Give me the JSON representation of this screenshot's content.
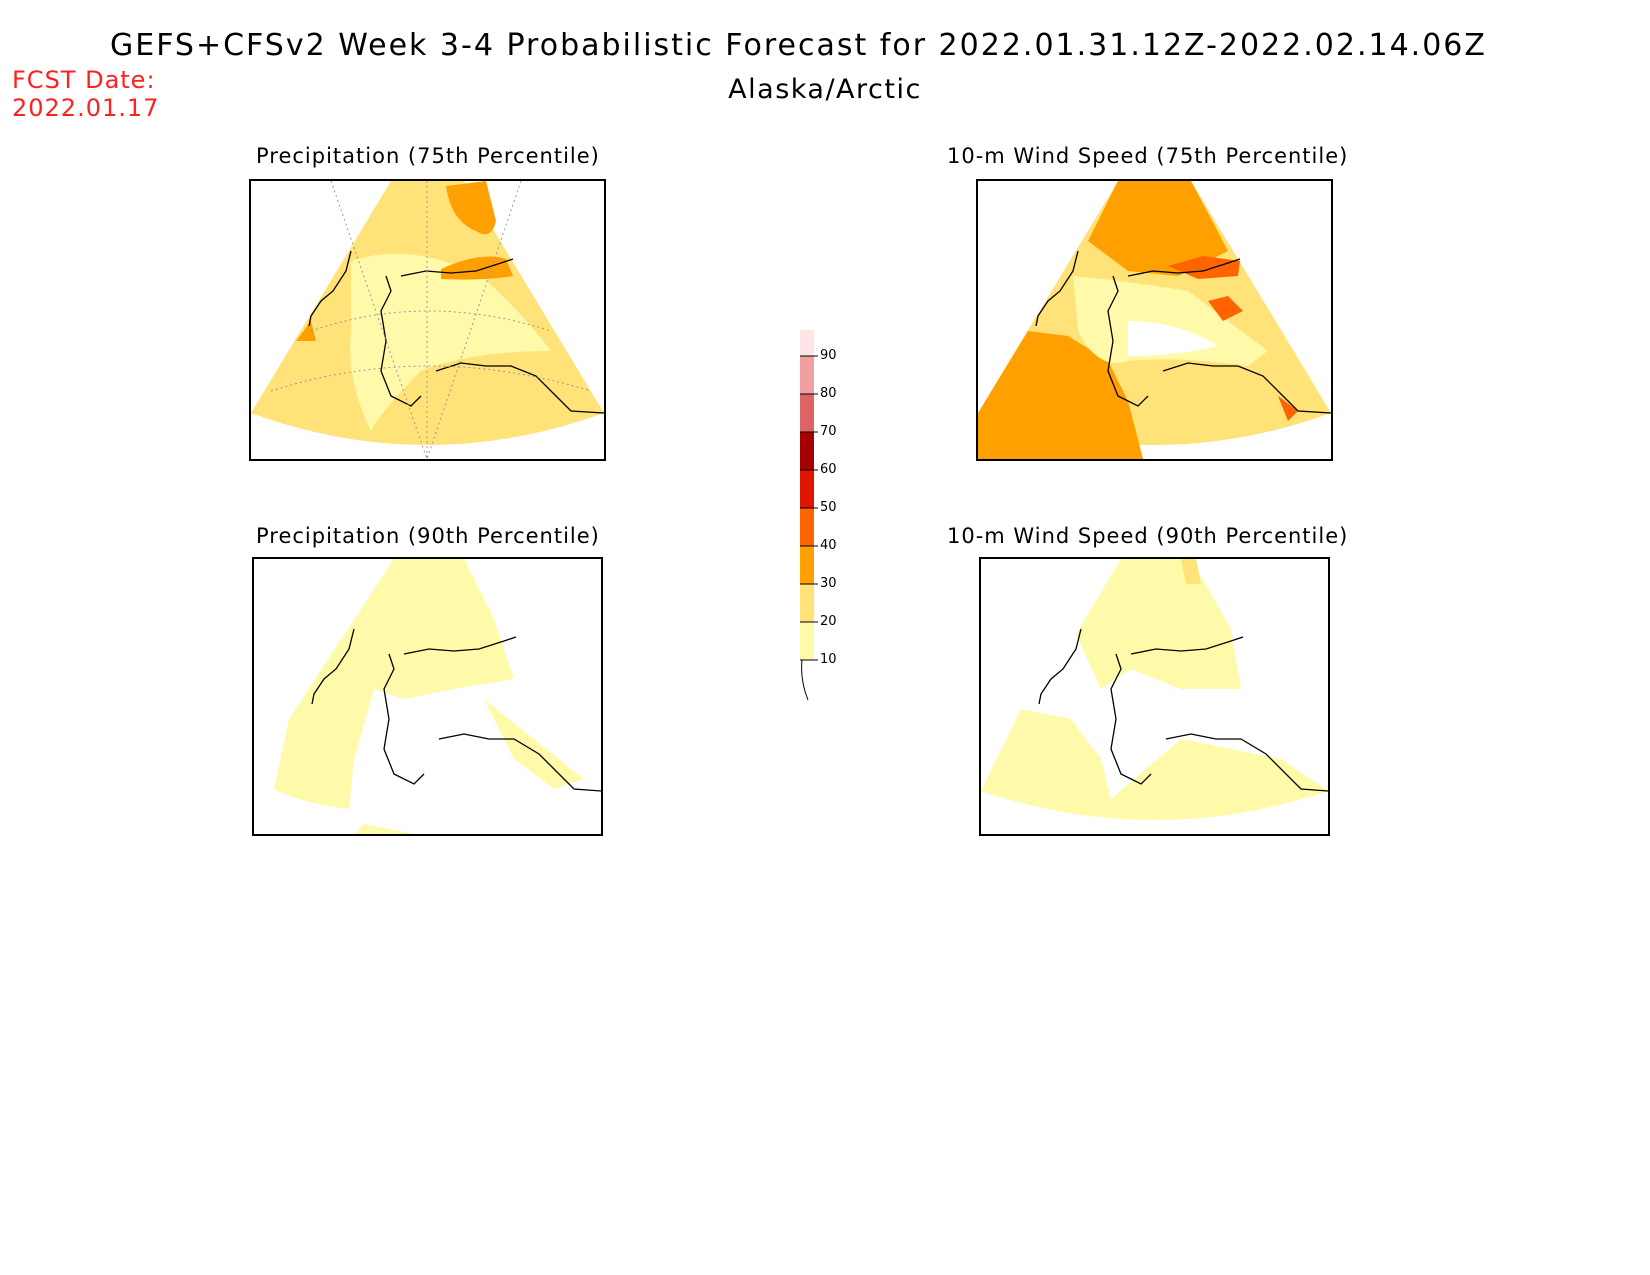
{
  "header": {
    "title": "GEFS+CFSv2 Week 3-4 Probabilistic Forecast for 2022.01.31.12Z-2022.02.14.06Z",
    "subtitle": "Alaska/Arctic",
    "fcst_label": "FCST Date:",
    "fcst_date": "2022.01.17"
  },
  "panels": [
    {
      "title": "Precipitation (75th Percentile)",
      "variable": "precipitation",
      "percentile": 75
    },
    {
      "title": "10-m Wind Speed (75th Percentile)",
      "variable": "wind_speed_10m",
      "percentile": 75
    },
    {
      "title": "Precipitation (90th Percentile)",
      "variable": "precipitation",
      "percentile": 90
    },
    {
      "title": "10-m Wind Speed (90th Percentile)",
      "variable": "wind_speed_10m",
      "percentile": 90
    }
  ],
  "colorbar": {
    "levels": [
      {
        "value": "10",
        "color": "#fffaaa"
      },
      {
        "value": "20",
        "color": "#ffe278"
      },
      {
        "value": "30",
        "color": "#ffa000"
      },
      {
        "value": "40",
        "color": "#ff6400"
      },
      {
        "value": "50",
        "color": "#e11400"
      },
      {
        "value": "60",
        "color": "#a50000"
      },
      {
        "value": "70",
        "color": "#dc6464"
      },
      {
        "value": "80",
        "color": "#f0a0a0"
      },
      {
        "value": "90",
        "color": "#ffe6e6"
      }
    ]
  }
}
